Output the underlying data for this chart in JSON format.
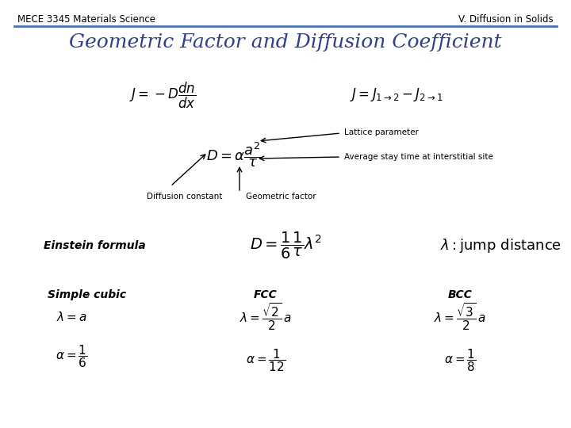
{
  "background_color": "#ffffff",
  "header_line_color": "#4472c4",
  "header_left": "MECE 3345 Materials Science",
  "header_right": "V. Diffusion in Solids",
  "header_fontsize": 8.5,
  "title": "Geometric Factor and Diffusion Coefficient",
  "title_color": "#2f3f8f",
  "title_fontsize": 18,
  "label_lattice": "Lattice parameter",
  "label_avg": "Average stay time at interstitial site",
  "label_diff_const": "Diffusion constant",
  "label_geom": "Geometric factor",
  "label_einstein": "Einstein formula",
  "label_sc": "Simple cubic",
  "label_fcc": "FCC",
  "label_bcc": "BCC"
}
